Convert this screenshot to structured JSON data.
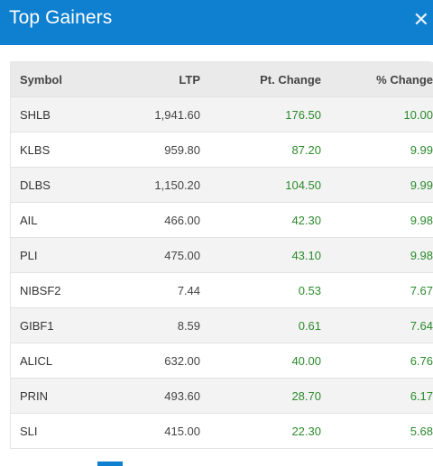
{
  "header": {
    "title": "Top Gainers",
    "close_symbol": "✕"
  },
  "table": {
    "columns": [
      "Symbol",
      "LTP",
      "Pt. Change",
      "% Change"
    ],
    "rows": [
      [
        "SHLB",
        "1,941.60",
        "176.50",
        "10.00"
      ],
      [
        "KLBS",
        "959.80",
        "87.20",
        "9.99"
      ],
      [
        "DLBS",
        "1,150.20",
        "104.50",
        "9.99"
      ],
      [
        "AIL",
        "466.00",
        "42.30",
        "9.98"
      ],
      [
        "PLI",
        "475.00",
        "43.10",
        "9.98"
      ],
      [
        "NIBSF2",
        "7.44",
        "0.53",
        "7.67"
      ],
      [
        "GIBF1",
        "8.59",
        "0.61",
        "7.64"
      ],
      [
        "ALICL",
        "632.00",
        "40.00",
        "6.76"
      ],
      [
        "PRIN",
        "493.60",
        "28.70",
        "6.17"
      ],
      [
        "SLI",
        "415.00",
        "22.30",
        "5.68"
      ]
    ]
  },
  "colors": {
    "header_bg": "#0f7fd0",
    "positive": "#2c8a2c"
  }
}
